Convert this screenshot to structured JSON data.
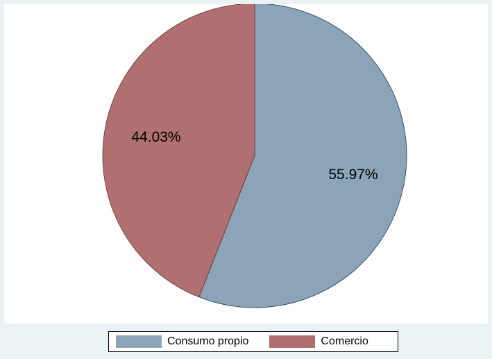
{
  "chart_data": {
    "type": "pie",
    "title": "",
    "slices": [
      {
        "label": "Consumo propio",
        "value": 55.97,
        "value_label": "55.97%",
        "color": "#8ca4b8"
      },
      {
        "label": "Comercio",
        "value": 44.03,
        "value_label": "44.03%",
        "color": "#b07072"
      }
    ],
    "legend_position": "bottom",
    "background_color": "#eaf2f3",
    "plot_background_color": "#ffffff"
  }
}
